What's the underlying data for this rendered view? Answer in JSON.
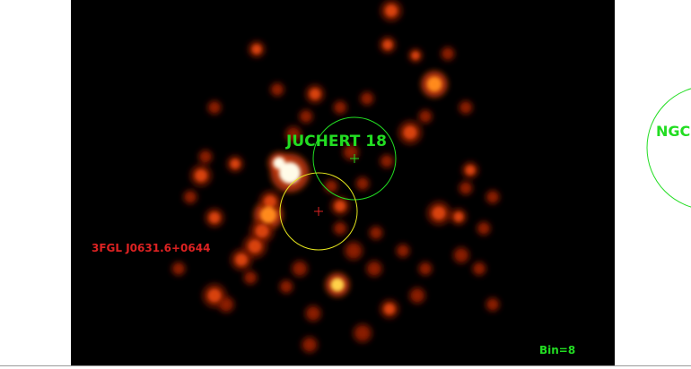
{
  "image": {
    "description_colormap": "heat",
    "background_color": "#000000"
  },
  "regions": {
    "juchert": {
      "label": "JUCHERT 18",
      "color": "#22dd22"
    },
    "fermi": {
      "label": "3FGL J0631.6+0644",
      "color": "#dd2222",
      "circle_color": "#e6e61e"
    },
    "ngc": {
      "label": "NGC",
      "color": "#22dd22"
    }
  },
  "status": {
    "bin_label": "Bin=8",
    "color": "#22dd22"
  }
}
